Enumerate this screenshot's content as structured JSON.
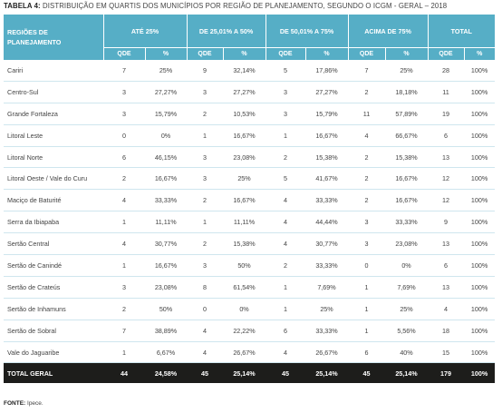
{
  "caption": {
    "label": "TABELA 4:",
    "text": "DISTRIBUIÇÃO EM QUARTIS DOS MUNICÍPIOS POR REGIÃO DE PLANEJAMENTO, SEGUNDO O ICGM - GERAL – 2018"
  },
  "header": {
    "region_label": "REGIÕES DE PLANEJAMENTO",
    "groups": [
      "ATÉ 25%",
      "DE 25,01% A 50%",
      "DE 50,01% A 75%",
      "ACIMA DE 75%",
      "TOTAL"
    ],
    "qde": "QDE",
    "pct": "%"
  },
  "rows": [
    {
      "name": "Cariri",
      "c": [
        "7",
        "25%",
        "9",
        "32,14%",
        "5",
        "17,86%",
        "7",
        "25%",
        "28",
        "100%"
      ]
    },
    {
      "name": "Centro-Sul",
      "c": [
        "3",
        "27,27%",
        "3",
        "27,27%",
        "3",
        "27,27%",
        "2",
        "18,18%",
        "11",
        "100%"
      ]
    },
    {
      "name": "Grande Fortaleza",
      "c": [
        "3",
        "15,79%",
        "2",
        "10,53%",
        "3",
        "15,79%",
        "11",
        "57,89%",
        "19",
        "100%"
      ]
    },
    {
      "name": "Litoral Leste",
      "c": [
        "0",
        "0%",
        "1",
        "16,67%",
        "1",
        "16,67%",
        "4",
        "66,67%",
        "6",
        "100%"
      ]
    },
    {
      "name": "Litoral Norte",
      "c": [
        "6",
        "46,15%",
        "3",
        "23,08%",
        "2",
        "15,38%",
        "2",
        "15,38%",
        "13",
        "100%"
      ]
    },
    {
      "name": "Litoral Oeste / Vale do Curu",
      "c": [
        "2",
        "16,67%",
        "3",
        "25%",
        "5",
        "41,67%",
        "2",
        "16,67%",
        "12",
        "100%"
      ]
    },
    {
      "name": "Maciço de Baturité",
      "c": [
        "4",
        "33,33%",
        "2",
        "16,67%",
        "4",
        "33,33%",
        "2",
        "16,67%",
        "12",
        "100%"
      ]
    },
    {
      "name": "Serra da Ibiapaba",
      "c": [
        "1",
        "11,11%",
        "1",
        "11,11%",
        "4",
        "44,44%",
        "3",
        "33,33%",
        "9",
        "100%"
      ]
    },
    {
      "name": "Sertão Central",
      "c": [
        "4",
        "30,77%",
        "2",
        "15,38%",
        "4",
        "30,77%",
        "3",
        "23,08%",
        "13",
        "100%"
      ]
    },
    {
      "name": "Sertão de Canindé",
      "c": [
        "1",
        "16,67%",
        "3",
        "50%",
        "2",
        "33,33%",
        "0",
        "0%",
        "6",
        "100%"
      ]
    },
    {
      "name": "Sertão de Crateús",
      "c": [
        "3",
        "23,08%",
        "8",
        "61,54%",
        "1",
        "7,69%",
        "1",
        "7,69%",
        "13",
        "100%"
      ]
    },
    {
      "name": "Sertão de Inhamuns",
      "c": [
        "2",
        "50%",
        "0",
        "0%",
        "1",
        "25%",
        "1",
        "25%",
        "4",
        "100%"
      ]
    },
    {
      "name": "Sertão de Sobral",
      "c": [
        "7",
        "38,89%",
        "4",
        "22,22%",
        "6",
        "33,33%",
        "1",
        "5,56%",
        "18",
        "100%"
      ]
    },
    {
      "name": "Vale do Jaguaribe",
      "c": [
        "1",
        "6,67%",
        "4",
        "26,67%",
        "4",
        "26,67%",
        "6",
        "40%",
        "15",
        "100%"
      ]
    }
  ],
  "total": {
    "name": "TOTAL GERAL",
    "c": [
      "44",
      "24,58%",
      "45",
      "25,14%",
      "45",
      "25,14%",
      "45",
      "25,14%",
      "179",
      "100%"
    ]
  },
  "source": {
    "label": "FONTE:",
    "text": "Ipece."
  },
  "colors": {
    "header_bg": "#56aec6",
    "total_bg": "#1d1d1b",
    "row_border": "#cfe6ee"
  }
}
